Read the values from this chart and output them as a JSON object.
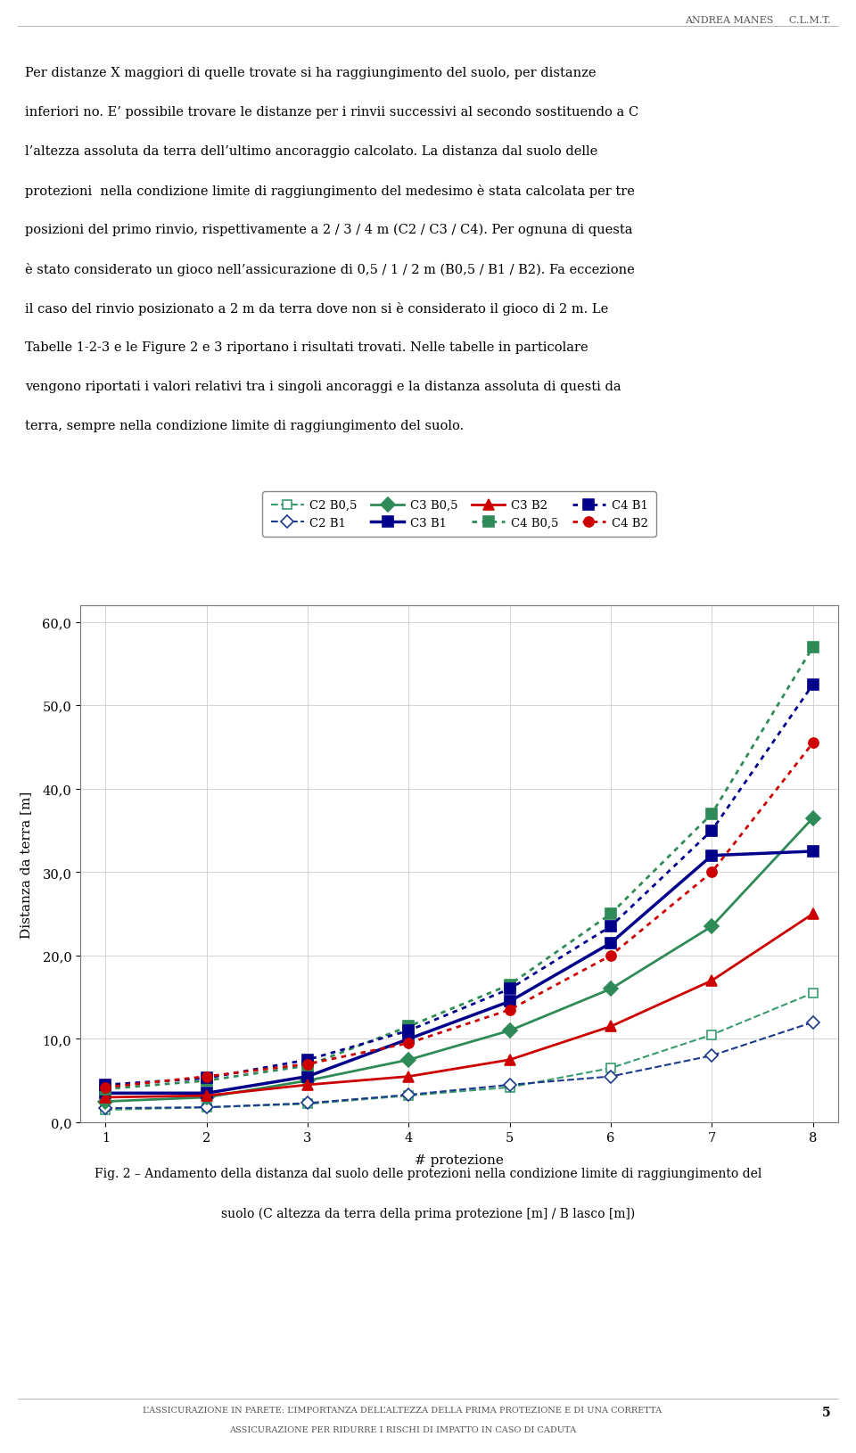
{
  "x": [
    1,
    2,
    3,
    4,
    5,
    6,
    7,
    8
  ],
  "series": [
    {
      "label": "C2 B0,5",
      "values": [
        1.5,
        1.8,
        2.2,
        3.2,
        4.2,
        6.5,
        10.5,
        15.5
      ],
      "color": "#3A9B6F",
      "linestyle": "dashed",
      "marker": "s",
      "markerfacecolor": "white",
      "linewidth": 1.5,
      "markersize": 7
    },
    {
      "label": "C2 B1",
      "values": [
        1.7,
        1.8,
        2.3,
        3.3,
        4.5,
        5.5,
        8.0,
        12.0
      ],
      "color": "#1B3A8C",
      "linestyle": "dashed",
      "marker": "D",
      "markerfacecolor": "white",
      "linewidth": 1.5,
      "markersize": 7
    },
    {
      "label": "C3 B0,5",
      "values": [
        2.5,
        3.0,
        5.0,
        7.5,
        11.0,
        16.0,
        23.5,
        36.5
      ],
      "color": "#2E8B57",
      "linestyle": "solid",
      "marker": "D",
      "markerfacecolor": "#2E8B57",
      "linewidth": 2.0,
      "markersize": 8
    },
    {
      "label": "C3 B1",
      "values": [
        3.5,
        3.5,
        5.5,
        10.0,
        14.5,
        21.5,
        32.0,
        32.5
      ],
      "color": "#00008B",
      "linestyle": "solid",
      "marker": "s",
      "markerfacecolor": "#00008B",
      "linewidth": 2.5,
      "markersize": 8
    },
    {
      "label": "C3 B2",
      "values": [
        3.0,
        3.2,
        4.5,
        5.5,
        7.5,
        11.5,
        17.0,
        25.0
      ],
      "color": "#CC0000",
      "linestyle": "solid",
      "marker": "^",
      "markerfacecolor": "#CC0000",
      "linewidth": 2.0,
      "markersize": 8
    },
    {
      "label": "C4 B0,5",
      "values": [
        4.0,
        5.0,
        6.8,
        11.5,
        16.5,
        25.0,
        37.0,
        57.0
      ],
      "color": "#2E8B57",
      "linestyle": "dotted",
      "marker": "s",
      "markerfacecolor": "#2E8B57",
      "linewidth": 2.0,
      "markersize": 8
    },
    {
      "label": "C4 B1",
      "values": [
        4.5,
        5.3,
        7.5,
        11.0,
        16.0,
        23.5,
        35.0,
        52.5
      ],
      "color": "#00008B",
      "linestyle": "dotted",
      "marker": "s",
      "markerfacecolor": "#00008B",
      "linewidth": 2.0,
      "markersize": 8
    },
    {
      "label": "C4 B2",
      "values": [
        4.2,
        5.5,
        7.0,
        9.5,
        13.5,
        20.0,
        30.0,
        45.5
      ],
      "color": "#CC0000",
      "linestyle": "dotted",
      "marker": "o",
      "markerfacecolor": "#CC0000",
      "linewidth": 2.0,
      "markersize": 8
    }
  ],
  "xlabel": "# protezione",
  "ylabel": "Distanza da terra [m]",
  "ylim": [
    0.0,
    62.0
  ],
  "xlim": [
    0.75,
    8.25
  ],
  "yticks": [
    0.0,
    10.0,
    20.0,
    30.0,
    40.0,
    50.0,
    60.0
  ],
  "ytick_labels": [
    "0,0",
    "10,0",
    "20,0",
    "30,0",
    "40,0",
    "50,0",
    "60,0"
  ],
  "xticks": [
    1,
    2,
    3,
    4,
    5,
    6,
    7,
    8
  ],
  "figsize": [
    9.6,
    16.31
  ],
  "dpi": 100,
  "header_text": "ANDREA MANES     C.L.M.T.",
  "body_lines": [
    "Per distanze X maggiori di quelle trovate si ha raggiungimento del suolo, per distanze",
    "inferiori no. E’ possibile trovare le distanze per i rinvii successivi al secondo sostituendo a C",
    "l’altezza assoluta da terra dell’ultimo ancoraggio calcolato. La distanza dal suolo delle",
    "protezioni  nella condizione limite di raggiungimento del medesimo è stata calcolata per tre",
    "posizioni del primo rinvio, rispettivamente a 2 / 3 / 4 m (C2 / C3 / C4). Per ognuna di questa",
    "è stato considerato un gioco nell’assicurazione di 0,5 / 1 / 2 m (B0,5 / B1 / B2). Fa eccezione",
    "il caso del rinvio posizionato a 2 m da terra dove non si è considerato il gioco di 2 m. Le",
    "Tabelle 1-2-3 e le Figure 2 e 3 riportano i risultati trovati. Nelle tabelle in particolare",
    "vengono riportati i valori relativi tra i singoli ancoraggi e la distanza assoluta di questi da",
    "terra, sempre nella condizione limite di raggiungimento del suolo."
  ],
  "caption_line1": "Fig. 2 – Andamento della distanza dal suolo delle protezioni nella condizione limite di raggiungimento del",
  "caption_line2": "suolo (C altezza da terra della prima protezione [m] / B lasco [m])",
  "footer_line1": "L’ASSICURAZIONE IN PARETE: L’IMPORTANZA DELL’ALTEZZA DELLA PRIMA PROTEZIONE E DI UNA CORRETTA",
  "footer_line2": "ASSICURAZIONE PER RIDURRE I RISCHI DI IMPATTO IN CASO DI CADUTA",
  "page_number": "5",
  "background_color": "#FFFFFF",
  "text_color": "#000000",
  "header_color": "#555555",
  "footer_color": "#555555"
}
